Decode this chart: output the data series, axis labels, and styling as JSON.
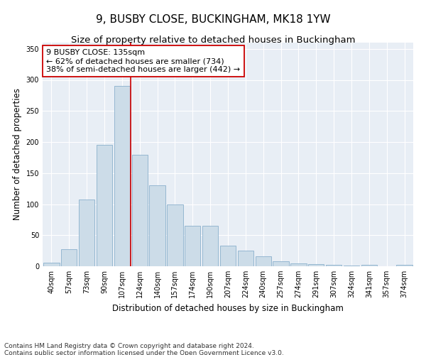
{
  "title": "9, BUSBY CLOSE, BUCKINGHAM, MK18 1YW",
  "subtitle": "Size of property relative to detached houses in Buckingham",
  "xlabel": "Distribution of detached houses by size in Buckingham",
  "ylabel": "Number of detached properties",
  "categories": [
    "40sqm",
    "57sqm",
    "73sqm",
    "90sqm",
    "107sqm",
    "124sqm",
    "140sqm",
    "157sqm",
    "174sqm",
    "190sqm",
    "207sqm",
    "224sqm",
    "240sqm",
    "257sqm",
    "274sqm",
    "291sqm",
    "307sqm",
    "324sqm",
    "341sqm",
    "357sqm",
    "374sqm"
  ],
  "values": [
    6,
    27,
    107,
    196,
    290,
    180,
    130,
    100,
    65,
    65,
    33,
    25,
    16,
    8,
    5,
    3,
    2,
    1,
    2,
    0,
    2
  ],
  "bar_color": "#ccdce8",
  "bar_edge_color": "#8ab0cc",
  "vline_pos": 4.5,
  "vline_color": "#cc0000",
  "annotation_line1": "9 BUSBY CLOSE: 135sqm",
  "annotation_line2": "← 62% of detached houses are smaller (734)",
  "annotation_line3": "38% of semi-detached houses are larger (442) →",
  "annotation_box_color": "#ffffff",
  "annotation_box_edge_color": "#cc0000",
  "ylim": [
    0,
    360
  ],
  "yticks": [
    0,
    50,
    100,
    150,
    200,
    250,
    300,
    350
  ],
  "bg_color": "#e8eef5",
  "footnote1": "Contains HM Land Registry data © Crown copyright and database right 2024.",
  "footnote2": "Contains public sector information licensed under the Open Government Licence v3.0.",
  "title_fontsize": 11,
  "subtitle_fontsize": 9.5,
  "axis_label_fontsize": 8.5,
  "tick_fontsize": 7,
  "annotation_fontsize": 8,
  "footnote_fontsize": 6.5
}
